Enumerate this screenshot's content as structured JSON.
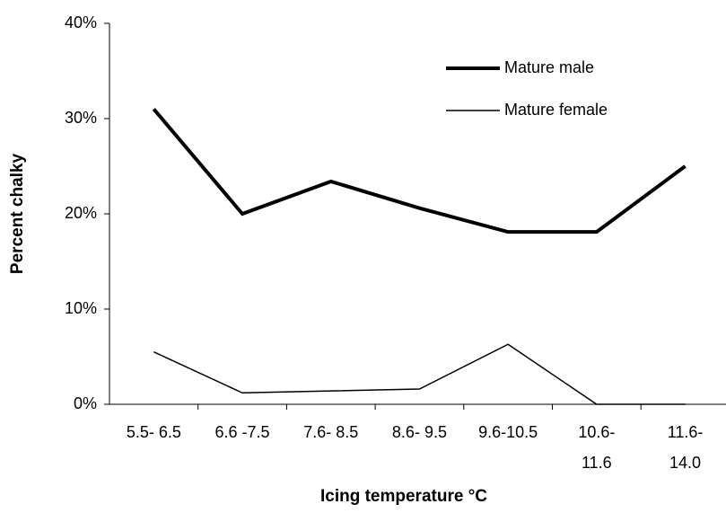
{
  "chart_data": {
    "type": "line",
    "x_label": "Icing temperature °C",
    "y_label": "Percent chalky",
    "categories": [
      "5.5- 6.5",
      "6.6 -7.5",
      "7.6- 8.5",
      "8.6- 9.5",
      "9.6-10.5",
      "10.6-11.6",
      "11.6-14.0"
    ],
    "series": [
      {
        "name": "Mature male",
        "color": "#000000",
        "width": 4,
        "values": [
          31,
          20,
          23.4,
          20.6,
          18.1,
          18.1,
          25
        ]
      },
      {
        "name": "Mature female",
        "color": "#000000",
        "width": 1.5,
        "values": [
          5.5,
          1.2,
          1.4,
          1.6,
          6.3,
          0,
          0
        ]
      }
    ],
    "ylim": [
      0,
      40
    ],
    "yticks": [
      {
        "value": 0,
        "label": "0%"
      },
      {
        "value": 10,
        "label": "10%"
      },
      {
        "value": 20,
        "label": "20%"
      },
      {
        "value": 30,
        "label": "30%"
      },
      {
        "value": 40,
        "label": "40%"
      }
    ],
    "legend": "upper right"
  }
}
